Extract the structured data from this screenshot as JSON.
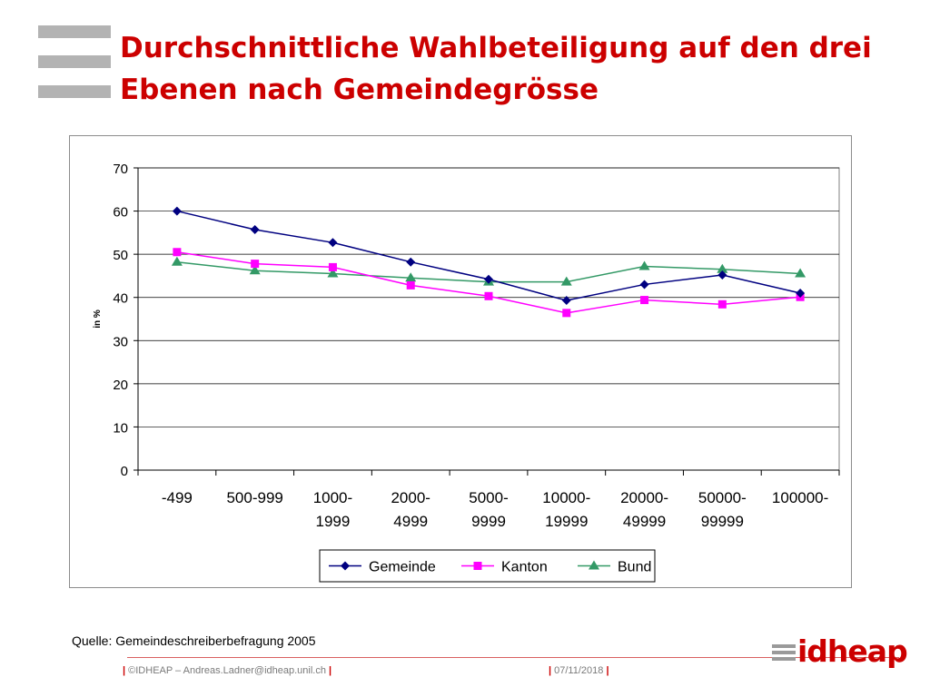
{
  "slide": {
    "title": "Durchschnittliche Wahlbeteiligung auf den drei Ebenen nach Gemeindegrösse",
    "source": "Quelle: Gemeindeschreiberbefragung 2005",
    "footer_left": "©IDHEAP – Andreas.Ladner@idheap.unil.ch",
    "footer_date": "07/11/2018",
    "separator": "|",
    "logo_text": "idheap",
    "title_color": "#cc0000",
    "menu_icon": "menu-bars-icon"
  },
  "chart_data": {
    "type": "line",
    "title": "",
    "xlabel": "",
    "ylabel": "in %",
    "ylim": [
      0,
      70
    ],
    "yticks": [
      0,
      10,
      20,
      30,
      40,
      50,
      60,
      70
    ],
    "grid": true,
    "legend_position": "bottom",
    "categories": [
      [
        "-499"
      ],
      [
        "500-999"
      ],
      [
        "1000-",
        "1999"
      ],
      [
        "2000-",
        "4999"
      ],
      [
        "5000-",
        "9999"
      ],
      [
        "10000-",
        "19999"
      ],
      [
        "20000-",
        "49999"
      ],
      [
        "50000-",
        "99999"
      ],
      [
        "100000-"
      ]
    ],
    "series": [
      {
        "name": "Gemeinde",
        "color": "#000080",
        "marker": "diamond",
        "values": [
          60,
          55.7,
          52.7,
          48.2,
          44.2,
          39.3,
          43,
          45.2,
          41
        ]
      },
      {
        "name": "Kanton",
        "color": "#ff00ff",
        "marker": "square",
        "values": [
          50.5,
          47.8,
          47,
          42.8,
          40.3,
          36.4,
          39.4,
          38.4,
          40.1
        ]
      },
      {
        "name": "Bund",
        "color": "#339966",
        "marker": "triangle",
        "values": [
          48.2,
          46.2,
          45.5,
          44.5,
          43.6,
          43.6,
          47.2,
          46.5,
          45.5
        ]
      }
    ]
  }
}
